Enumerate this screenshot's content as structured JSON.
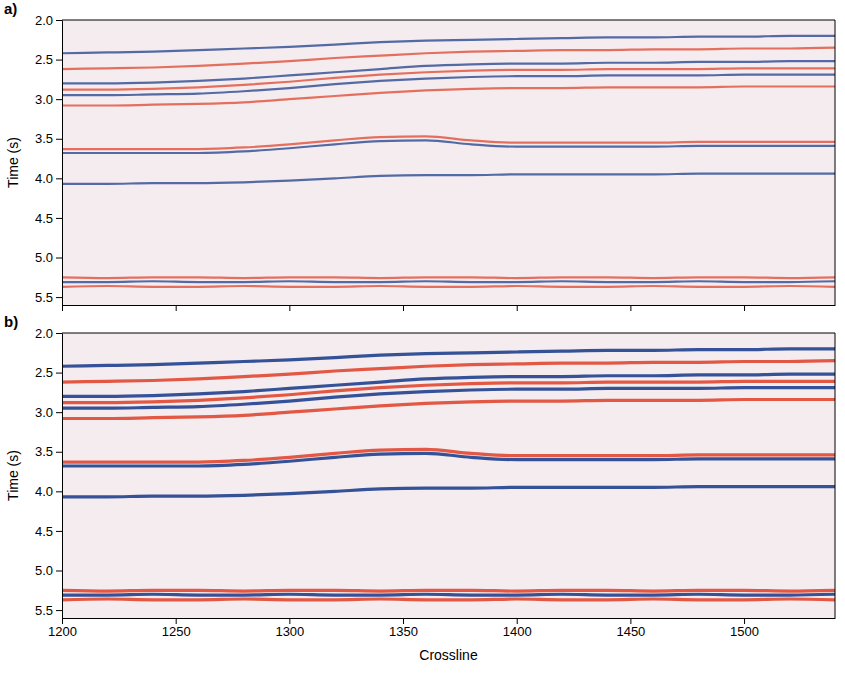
{
  "chart_data": [
    {
      "type": "line",
      "title": "a)",
      "y_label": "Time (s)",
      "tick_labels": "y",
      "x": [
        1200,
        1220,
        1240,
        1260,
        1280,
        1300,
        1320,
        1340,
        1360,
        1380,
        1400,
        1420,
        1440,
        1460,
        1480,
        1500,
        1520,
        1540
      ],
      "xlim": [
        1200,
        1540
      ],
      "xticks": [
        1200,
        1250,
        1300,
        1350,
        1400,
        1450,
        1500
      ],
      "ylim": [
        2.0,
        5.6
      ],
      "yticks": [
        {
          "value": 2,
          "label": "2.0"
        },
        2.5,
        {
          "value": 3,
          "label": "3.0"
        },
        3.5,
        {
          "value": 4,
          "label": "4.0"
        },
        4.5,
        {
          "value": 5,
          "label": "5.0"
        },
        5.5
      ],
      "series": [
        {
          "color": "#2a4a92",
          "values": [
            2.42,
            2.41,
            2.4,
            2.38,
            2.36,
            2.34,
            2.31,
            2.28,
            2.26,
            2.25,
            2.24,
            2.23,
            2.22,
            2.22,
            2.21,
            2.21,
            2.2,
            2.2
          ]
        },
        {
          "color": "#e0503a",
          "values": [
            2.62,
            2.61,
            2.6,
            2.58,
            2.55,
            2.52,
            2.48,
            2.45,
            2.42,
            2.4,
            2.39,
            2.38,
            2.38,
            2.37,
            2.37,
            2.36,
            2.36,
            2.35
          ]
        },
        {
          "color": "#2a4a92",
          "values": [
            2.8,
            2.8,
            2.79,
            2.77,
            2.74,
            2.7,
            2.66,
            2.62,
            2.58,
            2.56,
            2.55,
            2.55,
            2.54,
            2.54,
            2.53,
            2.53,
            2.52,
            2.52
          ]
        },
        {
          "color": "#e0503a",
          "values": [
            2.88,
            2.88,
            2.87,
            2.85,
            2.82,
            2.78,
            2.73,
            2.69,
            2.66,
            2.64,
            2.63,
            2.63,
            2.62,
            2.62,
            2.62,
            2.61,
            2.61,
            2.61
          ]
        },
        {
          "color": "#2a4a92",
          "values": [
            2.95,
            2.95,
            2.94,
            2.93,
            2.9,
            2.86,
            2.81,
            2.77,
            2.74,
            2.72,
            2.71,
            2.71,
            2.7,
            2.7,
            2.7,
            2.69,
            2.69,
            2.69
          ]
        },
        {
          "color": "#e0503a",
          "values": [
            3.08,
            3.08,
            3.07,
            3.06,
            3.04,
            3.0,
            2.96,
            2.92,
            2.89,
            2.87,
            2.86,
            2.86,
            2.85,
            2.85,
            2.85,
            2.84,
            2.84,
            2.84
          ]
        },
        {
          "color": "#e0503a",
          "values": [
            3.63,
            3.63,
            3.63,
            3.63,
            3.61,
            3.57,
            3.52,
            3.48,
            3.47,
            3.52,
            3.55,
            3.55,
            3.55,
            3.55,
            3.54,
            3.54,
            3.54,
            3.54
          ]
        },
        {
          "color": "#2a4a92",
          "values": [
            3.68,
            3.68,
            3.68,
            3.68,
            3.66,
            3.62,
            3.57,
            3.53,
            3.52,
            3.57,
            3.6,
            3.6,
            3.6,
            3.6,
            3.59,
            3.59,
            3.59,
            3.59
          ]
        },
        {
          "color": "#2a4a92",
          "values": [
            4.07,
            4.07,
            4.06,
            4.06,
            4.05,
            4.03,
            4.0,
            3.97,
            3.96,
            3.96,
            3.95,
            3.95,
            3.95,
            3.95,
            3.94,
            3.94,
            3.94,
            3.94
          ]
        },
        {
          "color": "#e0503a",
          "values": [
            5.25,
            5.26,
            5.25,
            5.25,
            5.26,
            5.25,
            5.25,
            5.26,
            5.25,
            5.25,
            5.26,
            5.25,
            5.25,
            5.26,
            5.25,
            5.25,
            5.26,
            5.25
          ]
        },
        {
          "color": "#2a4a92",
          "values": [
            5.31,
            5.31,
            5.3,
            5.31,
            5.31,
            5.3,
            5.31,
            5.31,
            5.3,
            5.31,
            5.31,
            5.3,
            5.31,
            5.31,
            5.3,
            5.31,
            5.31,
            5.3
          ]
        },
        {
          "color": "#e0503a",
          "values": [
            5.37,
            5.36,
            5.37,
            5.37,
            5.36,
            5.37,
            5.37,
            5.36,
            5.37,
            5.37,
            5.36,
            5.37,
            5.37,
            5.36,
            5.37,
            5.37,
            5.36,
            5.37
          ]
        }
      ]
    },
    {
      "type": "line",
      "title": "b)",
      "y_label": "Time (s)",
      "x_label": "Crossline",
      "x": [
        1200,
        1220,
        1240,
        1260,
        1280,
        1300,
        1320,
        1340,
        1360,
        1380,
        1400,
        1420,
        1440,
        1460,
        1480,
        1500,
        1520,
        1540
      ],
      "xlim": [
        1200,
        1540
      ],
      "xticks": [
        1200,
        1250,
        1300,
        1350,
        1400,
        1450,
        1500
      ],
      "ylim": [
        2.0,
        5.6
      ],
      "yticks": [
        {
          "value": 2,
          "label": "2.0"
        },
        2.5,
        {
          "value": 3,
          "label": "3.0"
        },
        3.5,
        {
          "value": 4,
          "label": "4.0"
        },
        4.5,
        {
          "value": 5,
          "label": "5.0"
        },
        5.5
      ],
      "series": [
        {
          "color": "#2a4a92",
          "values": [
            2.42,
            2.41,
            2.4,
            2.38,
            2.36,
            2.34,
            2.31,
            2.28,
            2.26,
            2.25,
            2.24,
            2.23,
            2.22,
            2.22,
            2.21,
            2.21,
            2.2,
            2.2
          ]
        },
        {
          "color": "#e0503a",
          "values": [
            2.62,
            2.61,
            2.6,
            2.58,
            2.55,
            2.52,
            2.48,
            2.45,
            2.42,
            2.4,
            2.39,
            2.38,
            2.38,
            2.37,
            2.37,
            2.36,
            2.36,
            2.35
          ]
        },
        {
          "color": "#2a4a92",
          "values": [
            2.8,
            2.8,
            2.79,
            2.77,
            2.74,
            2.7,
            2.66,
            2.62,
            2.58,
            2.56,
            2.55,
            2.55,
            2.54,
            2.54,
            2.53,
            2.53,
            2.52,
            2.52
          ]
        },
        {
          "color": "#e0503a",
          "values": [
            2.88,
            2.88,
            2.87,
            2.85,
            2.82,
            2.78,
            2.73,
            2.69,
            2.66,
            2.64,
            2.63,
            2.63,
            2.62,
            2.62,
            2.62,
            2.61,
            2.61,
            2.61
          ]
        },
        {
          "color": "#2a4a92",
          "values": [
            2.95,
            2.95,
            2.94,
            2.93,
            2.9,
            2.86,
            2.81,
            2.77,
            2.74,
            2.72,
            2.71,
            2.71,
            2.7,
            2.7,
            2.7,
            2.69,
            2.69,
            2.69
          ]
        },
        {
          "color": "#e0503a",
          "values": [
            3.08,
            3.08,
            3.07,
            3.06,
            3.04,
            3.0,
            2.96,
            2.92,
            2.89,
            2.87,
            2.86,
            2.86,
            2.85,
            2.85,
            2.85,
            2.84,
            2.84,
            2.84
          ]
        },
        {
          "color": "#e0503a",
          "values": [
            3.63,
            3.63,
            3.63,
            3.63,
            3.61,
            3.57,
            3.52,
            3.48,
            3.47,
            3.52,
            3.55,
            3.55,
            3.55,
            3.55,
            3.54,
            3.54,
            3.54,
            3.54
          ]
        },
        {
          "color": "#2a4a92",
          "values": [
            3.68,
            3.68,
            3.68,
            3.68,
            3.66,
            3.62,
            3.57,
            3.53,
            3.52,
            3.57,
            3.6,
            3.6,
            3.6,
            3.6,
            3.59,
            3.59,
            3.59,
            3.59
          ]
        },
        {
          "color": "#2a4a92",
          "values": [
            4.07,
            4.07,
            4.06,
            4.06,
            4.05,
            4.03,
            4.0,
            3.97,
            3.96,
            3.96,
            3.95,
            3.95,
            3.95,
            3.95,
            3.94,
            3.94,
            3.94,
            3.94
          ]
        },
        {
          "color": "#e0503a",
          "values": [
            5.25,
            5.26,
            5.25,
            5.25,
            5.26,
            5.25,
            5.25,
            5.26,
            5.25,
            5.25,
            5.26,
            5.25,
            5.25,
            5.26,
            5.25,
            5.25,
            5.26,
            5.25
          ]
        },
        {
          "color": "#2a4a92",
          "values": [
            5.31,
            5.31,
            5.3,
            5.31,
            5.31,
            5.3,
            5.31,
            5.31,
            5.3,
            5.31,
            5.31,
            5.3,
            5.31,
            5.31,
            5.3,
            5.31,
            5.31,
            5.3
          ]
        },
        {
          "color": "#e0503a",
          "values": [
            5.37,
            5.36,
            5.37,
            5.37,
            5.36,
            5.37,
            5.37,
            5.36,
            5.37,
            5.37,
            5.36,
            5.37,
            5.37,
            5.36,
            5.37,
            5.37,
            5.36,
            5.37
          ]
        }
      ]
    }
  ]
}
